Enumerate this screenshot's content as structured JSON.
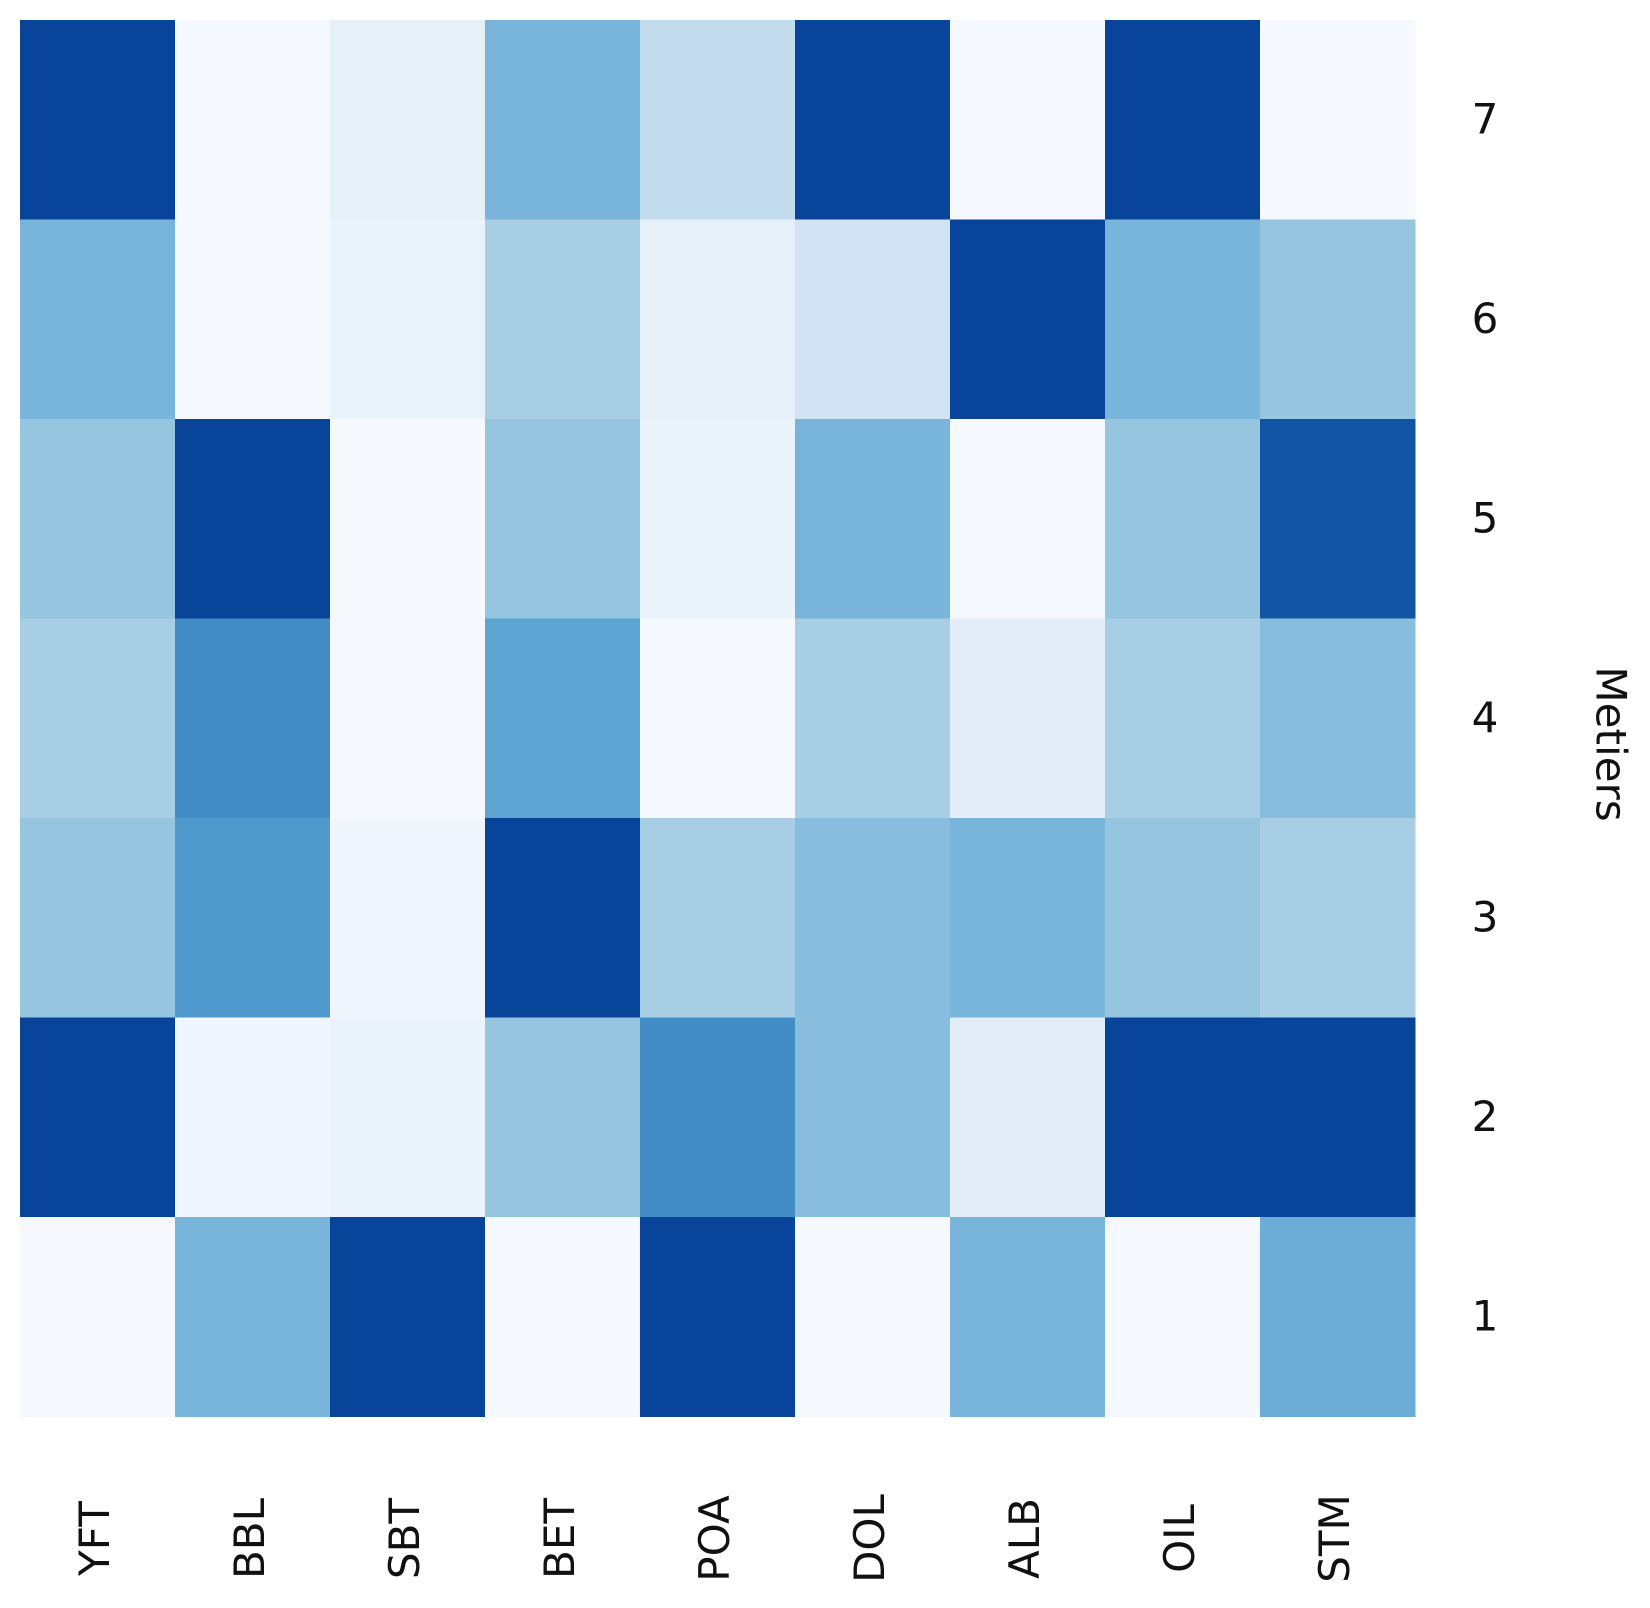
{
  "chart_data": {
    "type": "heatmap",
    "title": "",
    "xlabel": "",
    "ylabel": "Metiers",
    "x_categories": [
      "YFT",
      "BBL",
      "SBT",
      "BET",
      "POA",
      "DOL",
      "ALB",
      "OIL",
      "STM"
    ],
    "y_categories": [
      "7",
      "6",
      "5",
      "4",
      "3",
      "2",
      "1"
    ],
    "values": [
      [
        1.0,
        0.02,
        0.15,
        0.55,
        0.32,
        1.0,
        0.02,
        1.0,
        0.02
      ],
      [
        0.55,
        0.02,
        0.12,
        0.4,
        0.15,
        0.28,
        1.0,
        0.55,
        0.45
      ],
      [
        0.45,
        1.0,
        0.02,
        0.45,
        0.12,
        0.55,
        0.02,
        0.45,
        0.95
      ],
      [
        0.4,
        0.75,
        0.02,
        0.65,
        0.02,
        0.4,
        0.18,
        0.4,
        0.5
      ],
      [
        0.45,
        0.7,
        0.06,
        1.0,
        0.4,
        0.5,
        0.55,
        0.45,
        0.4
      ],
      [
        1.0,
        0.06,
        0.12,
        0.45,
        0.75,
        0.5,
        0.18,
        1.0,
        1.0
      ],
      [
        0.02,
        0.55,
        1.0,
        0.02,
        1.0,
        0.02,
        0.55,
        0.02,
        0.6
      ]
    ],
    "colormap": "Blues",
    "color_low": "#f7fbff",
    "color_high": "#08449a",
    "x_axis_position": "bottom",
    "y_axis_position": "right",
    "x_tick_rotation": "vertical",
    "grid": false,
    "colorbar": false
  }
}
